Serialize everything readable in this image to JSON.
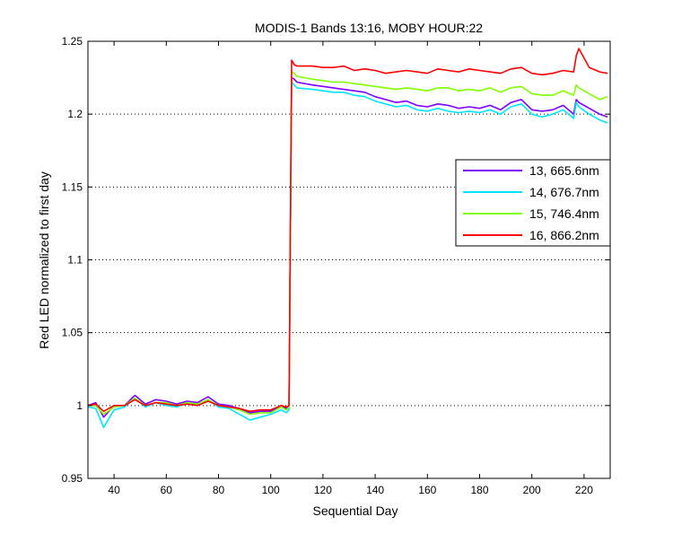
{
  "chart_data": {
    "type": "line",
    "title": "MODIS-1 Bands 13:16, MOBY HOUR:22",
    "xlabel": "Sequential Day",
    "ylabel": "Red LED normalized to first day",
    "xlim": [
      30,
      230
    ],
    "ylim": [
      0.95,
      1.25
    ],
    "xticks": [
      40,
      60,
      80,
      100,
      120,
      140,
      160,
      180,
      200,
      220
    ],
    "xtick_labels": [
      "40",
      "60",
      "80",
      "100",
      "120",
      "140",
      "160",
      "180",
      "200",
      "220"
    ],
    "yticks": [
      0.95,
      1,
      1.05,
      1.1,
      1.15,
      1.2,
      1.25
    ],
    "ytick_labels": [
      "0.95",
      "1",
      "1.05",
      "1.1",
      "1.15",
      "1.2",
      "1.25"
    ],
    "grid": "horizontal dotted",
    "legend_position": "upper-right",
    "series": [
      {
        "name": "13, 665.6nm",
        "color": "#7f00ff",
        "x": [
          30,
          33,
          36,
          40,
          44,
          48,
          52,
          56,
          60,
          64,
          68,
          72,
          76,
          80,
          84,
          88,
          92,
          96,
          100,
          104,
          106,
          107,
          108,
          109,
          110,
          116,
          120,
          124,
          128,
          132,
          136,
          140,
          144,
          148,
          152,
          156,
          160,
          164,
          168,
          172,
          176,
          180,
          184,
          188,
          192,
          196,
          200,
          204,
          208,
          212,
          216,
          217,
          218,
          222,
          226,
          229
        ],
        "y": [
          1.0,
          1.002,
          0.992,
          1.0,
          1.0,
          1.007,
          1.001,
          1.004,
          1.003,
          1.001,
          1.003,
          1.002,
          1.006,
          1.001,
          1.0,
          0.998,
          0.995,
          0.996,
          0.996,
          1.0,
          0.998,
          1.0,
          1.225,
          1.224,
          1.222,
          1.22,
          1.219,
          1.218,
          1.217,
          1.216,
          1.215,
          1.212,
          1.21,
          1.208,
          1.209,
          1.206,
          1.205,
          1.207,
          1.206,
          1.204,
          1.205,
          1.204,
          1.206,
          1.203,
          1.208,
          1.21,
          1.203,
          1.202,
          1.203,
          1.206,
          1.2,
          1.21,
          1.208,
          1.204,
          1.2,
          1.198
        ]
      },
      {
        "name": "14, 676.7nm",
        "color": "#00e5ff",
        "x": [
          30,
          33,
          36,
          40,
          44,
          48,
          52,
          56,
          60,
          64,
          68,
          72,
          76,
          80,
          84,
          88,
          92,
          96,
          100,
          104,
          106,
          107,
          108,
          109,
          110,
          116,
          120,
          124,
          128,
          132,
          136,
          140,
          144,
          148,
          152,
          156,
          160,
          164,
          168,
          172,
          176,
          180,
          184,
          188,
          192,
          196,
          200,
          204,
          208,
          212,
          216,
          217,
          218,
          222,
          226,
          229
        ],
        "y": [
          0.999,
          0.998,
          0.985,
          0.997,
          0.999,
          1.005,
          0.999,
          1.002,
          1.0,
          0.999,
          1.002,
          1.0,
          1.004,
          0.999,
          0.998,
          0.994,
          0.99,
          0.992,
          0.994,
          0.997,
          0.995,
          0.997,
          1.222,
          1.22,
          1.218,
          1.217,
          1.216,
          1.215,
          1.215,
          1.213,
          1.212,
          1.209,
          1.207,
          1.205,
          1.206,
          1.203,
          1.202,
          1.204,
          1.202,
          1.201,
          1.202,
          1.201,
          1.203,
          1.2,
          1.205,
          1.207,
          1.2,
          1.198,
          1.2,
          1.203,
          1.197,
          1.208,
          1.205,
          1.2,
          1.196,
          1.194
        ]
      },
      {
        "name": "15, 746.4nm",
        "color": "#80ff00",
        "x": [
          30,
          33,
          36,
          40,
          44,
          48,
          52,
          56,
          60,
          64,
          68,
          72,
          76,
          80,
          84,
          88,
          92,
          96,
          100,
          104,
          106,
          107,
          108,
          109,
          110,
          116,
          120,
          124,
          128,
          132,
          136,
          140,
          144,
          148,
          152,
          156,
          160,
          164,
          168,
          172,
          176,
          180,
          184,
          188,
          192,
          196,
          200,
          204,
          208,
          212,
          216,
          217,
          218,
          222,
          226,
          229
        ],
        "y": [
          1.0,
          1.0,
          0.994,
          0.999,
          1.0,
          1.005,
          1.0,
          1.002,
          1.002,
          1.0,
          1.002,
          1.001,
          1.004,
          1.0,
          0.999,
          0.997,
          0.994,
          0.995,
          0.995,
          0.999,
          0.997,
          0.999,
          1.229,
          1.228,
          1.226,
          1.224,
          1.223,
          1.222,
          1.222,
          1.221,
          1.22,
          1.219,
          1.218,
          1.217,
          1.218,
          1.217,
          1.216,
          1.218,
          1.218,
          1.216,
          1.217,
          1.216,
          1.218,
          1.215,
          1.218,
          1.219,
          1.214,
          1.213,
          1.213,
          1.216,
          1.213,
          1.22,
          1.218,
          1.214,
          1.21,
          1.212
        ]
      },
      {
        "name": "16, 866.2nm",
        "color": "#ff0000",
        "x": [
          30,
          33,
          36,
          40,
          44,
          48,
          52,
          56,
          60,
          64,
          68,
          72,
          76,
          80,
          84,
          88,
          92,
          96,
          100,
          104,
          106,
          107,
          108,
          109,
          110,
          116,
          120,
          124,
          128,
          132,
          136,
          140,
          144,
          148,
          152,
          156,
          160,
          164,
          168,
          172,
          176,
          180,
          184,
          188,
          192,
          196,
          200,
          204,
          208,
          212,
          216,
          217,
          218,
          222,
          226,
          229
        ],
        "y": [
          1.0,
          1.001,
          0.996,
          1.0,
          1.0,
          1.004,
          1.0,
          1.002,
          1.001,
          1.0,
          1.001,
          1.0,
          1.003,
          1.0,
          0.999,
          0.998,
          0.996,
          0.997,
          0.997,
          1.0,
          0.999,
          1.0,
          1.237,
          1.234,
          1.233,
          1.233,
          1.232,
          1.232,
          1.233,
          1.23,
          1.231,
          1.23,
          1.228,
          1.229,
          1.23,
          1.229,
          1.228,
          1.231,
          1.23,
          1.229,
          1.231,
          1.23,
          1.229,
          1.228,
          1.231,
          1.232,
          1.228,
          1.227,
          1.228,
          1.23,
          1.229,
          1.24,
          1.245,
          1.232,
          1.229,
          1.228
        ]
      }
    ]
  }
}
